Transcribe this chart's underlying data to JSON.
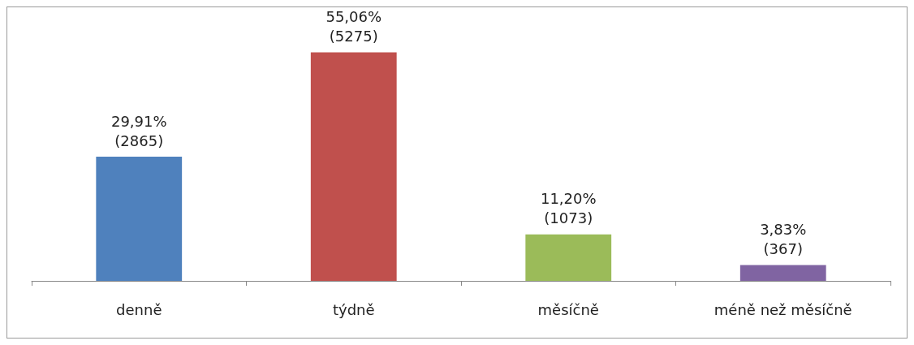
{
  "chart_data": {
    "type": "bar",
    "categories": [
      "denně",
      "týdně",
      "měsíčně",
      "méně než měsíčně"
    ],
    "values": [
      29.91,
      55.06,
      11.2,
      3.83
    ],
    "colors": [
      "#4f81bd",
      "#c0504d",
      "#9bbb59",
      "#8064a2"
    ],
    "value_labels": [
      "29,91%\n(2865)",
      "55,06%\n(5275)",
      "11,20%\n(1073)",
      "3,83%\n(367)"
    ]
  }
}
